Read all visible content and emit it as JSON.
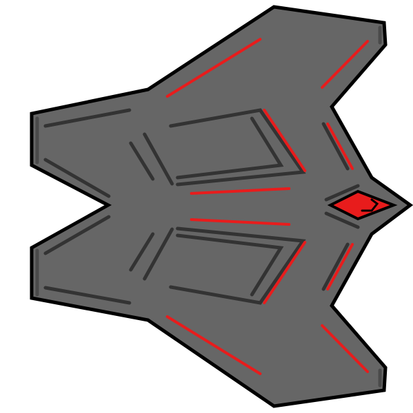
{
  "sprite": {
    "subject": "spaceship-top-down",
    "colors": {
      "background": "#ffffff",
      "outline": "#000000",
      "hull": "#666666",
      "panel_line": "#333333",
      "accent": "#e81c1c"
    }
  }
}
